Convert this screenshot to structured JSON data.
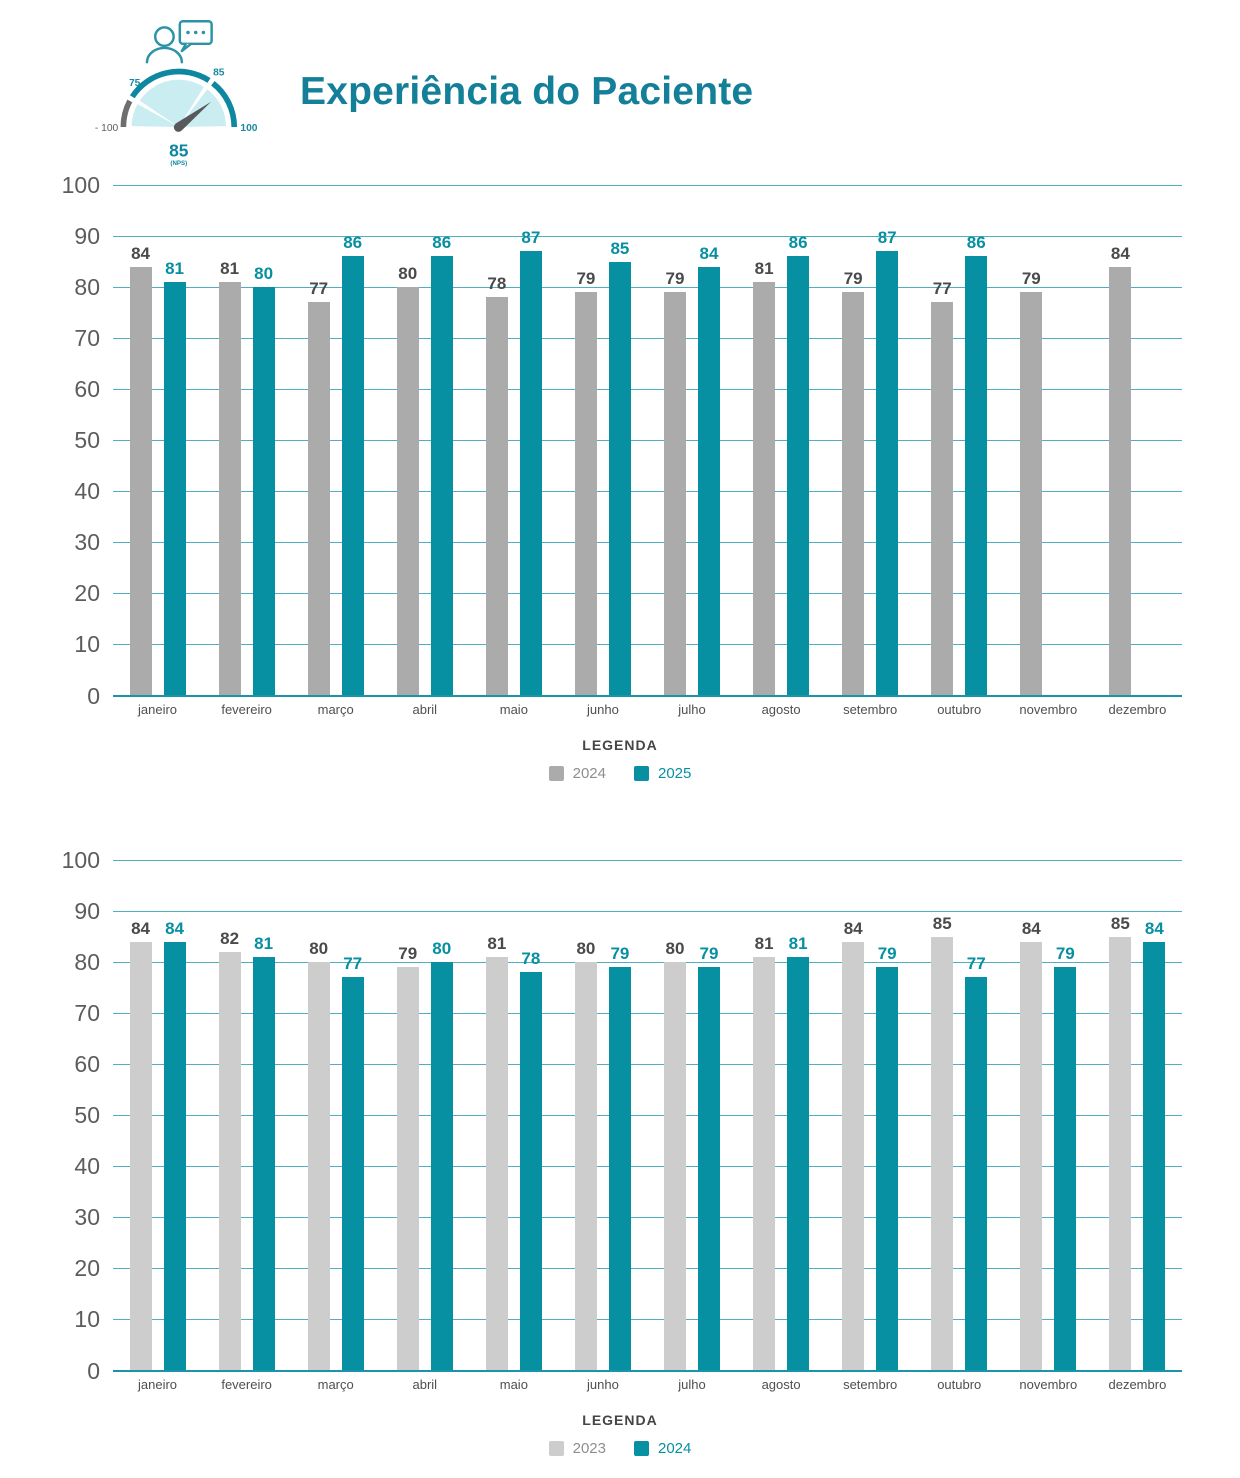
{
  "header": {
    "title": "Experiência do Paciente",
    "gauge": {
      "tick_left": "75",
      "tick_right": "85",
      "min_label": "- 100",
      "max_label": "100",
      "value": "85",
      "unit": "(NPS)"
    }
  },
  "colors": {
    "teal": "#078fa2",
    "title_teal": "#137f98",
    "gray_dark_bars": "#ababab",
    "gray_light_bars": "#cdcdcd",
    "gridline": "#4fafc0",
    "baseline": "#1994a9",
    "value_label_dark": "#4a4a4a",
    "axis_tick": "#5c5c5c"
  },
  "chart_data": [
    {
      "type": "bar",
      "title": "",
      "xlabel": "",
      "ylabel": "",
      "ylim": [
        0,
        100
      ],
      "ytick_step": 10,
      "grid": true,
      "legend_position": "bottom",
      "legend_title": "LEGENDA",
      "categories": [
        "janeiro",
        "fevereiro",
        "março",
        "abril",
        "maio",
        "junho",
        "julho",
        "agosto",
        "setembro",
        "outubro",
        "novembro",
        "dezembro"
      ],
      "series": [
        {
          "name": "2024",
          "color": "#ababab",
          "label_color": "#4a4a4a",
          "legend_text_color": "#8e8e8e",
          "values": [
            84,
            81,
            77,
            80,
            78,
            79,
            79,
            81,
            79,
            77,
            79,
            84
          ]
        },
        {
          "name": "2025",
          "color": "#078fa2",
          "label_color": "#078fa2",
          "legend_text_color": "#078fa2",
          "values": [
            81,
            80,
            86,
            86,
            87,
            85,
            84,
            86,
            87,
            86,
            null,
            null
          ]
        }
      ]
    },
    {
      "type": "bar",
      "title": "",
      "xlabel": "",
      "ylabel": "",
      "ylim": [
        0,
        100
      ],
      "ytick_step": 10,
      "grid": true,
      "legend_position": "bottom",
      "legend_title": "LEGENDA",
      "categories": [
        "janeiro",
        "fevereiro",
        "março",
        "abril",
        "maio",
        "junho",
        "julho",
        "agosto",
        "setembro",
        "outubro",
        "novembro",
        "dezembro"
      ],
      "series": [
        {
          "name": "2023",
          "color": "#cdcdcd",
          "label_color": "#4a4a4a",
          "legend_text_color": "#8e8e8e",
          "values": [
            84,
            82,
            80,
            79,
            81,
            80,
            80,
            81,
            84,
            85,
            84,
            85
          ]
        },
        {
          "name": "2024",
          "color": "#078fa2",
          "label_color": "#078fa2",
          "legend_text_color": "#078fa2",
          "values": [
            84,
            81,
            77,
            80,
            78,
            79,
            79,
            81,
            79,
            77,
            79,
            84
          ]
        }
      ]
    }
  ]
}
